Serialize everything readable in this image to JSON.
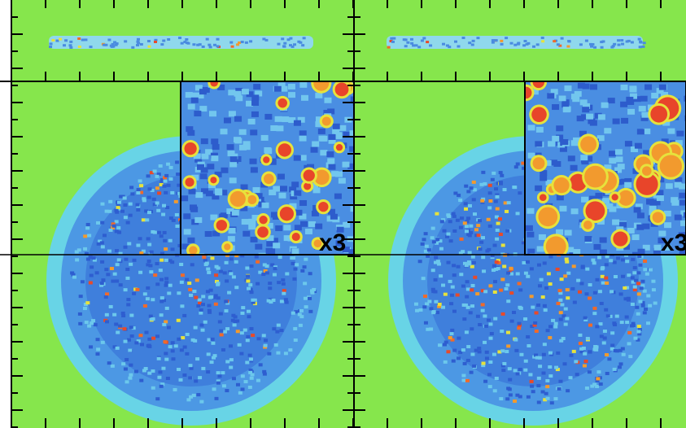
{
  "panels": [
    {
      "inset_label": "x3"
    },
    {
      "inset_label": "x3"
    }
  ]
}
